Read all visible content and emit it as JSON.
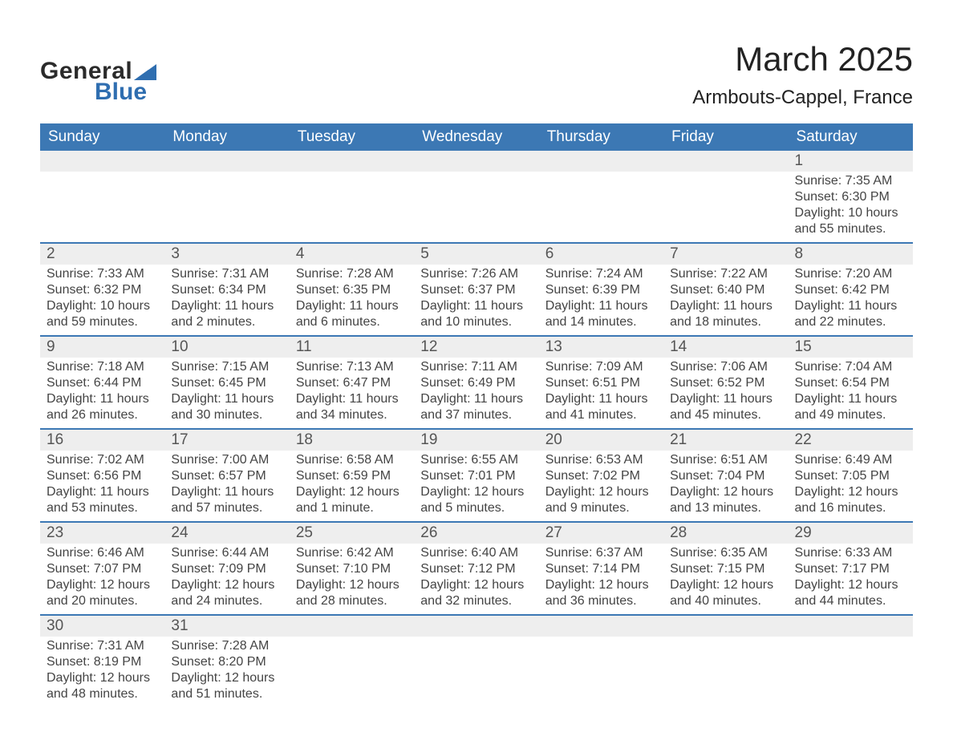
{
  "logo": {
    "text1": "General",
    "text2": "Blue",
    "text_color1": "#2b2b2b",
    "text_color2": "#2f6eb0",
    "shape_color": "#2f6eb0"
  },
  "header": {
    "month_title": "March 2025",
    "location": "Armbouts-Cappel, France",
    "title_fontsize": 42,
    "location_fontsize": 24,
    "text_color": "#222222"
  },
  "calendar": {
    "header_bg": "#3c78b4",
    "header_text_color": "#ffffff",
    "row_divider_color": "#3c78b4",
    "daynum_bg": "#eeeeee",
    "daynum_color": "#555555",
    "body_text_color": "#444444",
    "background_color": "#ffffff",
    "day_headers": [
      "Sunday",
      "Monday",
      "Tuesday",
      "Wednesday",
      "Thursday",
      "Friday",
      "Saturday"
    ],
    "weeks": [
      [
        null,
        null,
        null,
        null,
        null,
        null,
        {
          "n": "1",
          "sunrise": "Sunrise: 7:35 AM",
          "sunset": "Sunset: 6:30 PM",
          "daylight1": "Daylight: 10 hours",
          "daylight2": "and 55 minutes."
        }
      ],
      [
        {
          "n": "2",
          "sunrise": "Sunrise: 7:33 AM",
          "sunset": "Sunset: 6:32 PM",
          "daylight1": "Daylight: 10 hours",
          "daylight2": "and 59 minutes."
        },
        {
          "n": "3",
          "sunrise": "Sunrise: 7:31 AM",
          "sunset": "Sunset: 6:34 PM",
          "daylight1": "Daylight: 11 hours",
          "daylight2": "and 2 minutes."
        },
        {
          "n": "4",
          "sunrise": "Sunrise: 7:28 AM",
          "sunset": "Sunset: 6:35 PM",
          "daylight1": "Daylight: 11 hours",
          "daylight2": "and 6 minutes."
        },
        {
          "n": "5",
          "sunrise": "Sunrise: 7:26 AM",
          "sunset": "Sunset: 6:37 PM",
          "daylight1": "Daylight: 11 hours",
          "daylight2": "and 10 minutes."
        },
        {
          "n": "6",
          "sunrise": "Sunrise: 7:24 AM",
          "sunset": "Sunset: 6:39 PM",
          "daylight1": "Daylight: 11 hours",
          "daylight2": "and 14 minutes."
        },
        {
          "n": "7",
          "sunrise": "Sunrise: 7:22 AM",
          "sunset": "Sunset: 6:40 PM",
          "daylight1": "Daylight: 11 hours",
          "daylight2": "and 18 minutes."
        },
        {
          "n": "8",
          "sunrise": "Sunrise: 7:20 AM",
          "sunset": "Sunset: 6:42 PM",
          "daylight1": "Daylight: 11 hours",
          "daylight2": "and 22 minutes."
        }
      ],
      [
        {
          "n": "9",
          "sunrise": "Sunrise: 7:18 AM",
          "sunset": "Sunset: 6:44 PM",
          "daylight1": "Daylight: 11 hours",
          "daylight2": "and 26 minutes."
        },
        {
          "n": "10",
          "sunrise": "Sunrise: 7:15 AM",
          "sunset": "Sunset: 6:45 PM",
          "daylight1": "Daylight: 11 hours",
          "daylight2": "and 30 minutes."
        },
        {
          "n": "11",
          "sunrise": "Sunrise: 7:13 AM",
          "sunset": "Sunset: 6:47 PM",
          "daylight1": "Daylight: 11 hours",
          "daylight2": "and 34 minutes."
        },
        {
          "n": "12",
          "sunrise": "Sunrise: 7:11 AM",
          "sunset": "Sunset: 6:49 PM",
          "daylight1": "Daylight: 11 hours",
          "daylight2": "and 37 minutes."
        },
        {
          "n": "13",
          "sunrise": "Sunrise: 7:09 AM",
          "sunset": "Sunset: 6:51 PM",
          "daylight1": "Daylight: 11 hours",
          "daylight2": "and 41 minutes."
        },
        {
          "n": "14",
          "sunrise": "Sunrise: 7:06 AM",
          "sunset": "Sunset: 6:52 PM",
          "daylight1": "Daylight: 11 hours",
          "daylight2": "and 45 minutes."
        },
        {
          "n": "15",
          "sunrise": "Sunrise: 7:04 AM",
          "sunset": "Sunset: 6:54 PM",
          "daylight1": "Daylight: 11 hours",
          "daylight2": "and 49 minutes."
        }
      ],
      [
        {
          "n": "16",
          "sunrise": "Sunrise: 7:02 AM",
          "sunset": "Sunset: 6:56 PM",
          "daylight1": "Daylight: 11 hours",
          "daylight2": "and 53 minutes."
        },
        {
          "n": "17",
          "sunrise": "Sunrise: 7:00 AM",
          "sunset": "Sunset: 6:57 PM",
          "daylight1": "Daylight: 11 hours",
          "daylight2": "and 57 minutes."
        },
        {
          "n": "18",
          "sunrise": "Sunrise: 6:58 AM",
          "sunset": "Sunset: 6:59 PM",
          "daylight1": "Daylight: 12 hours",
          "daylight2": "and 1 minute."
        },
        {
          "n": "19",
          "sunrise": "Sunrise: 6:55 AM",
          "sunset": "Sunset: 7:01 PM",
          "daylight1": "Daylight: 12 hours",
          "daylight2": "and 5 minutes."
        },
        {
          "n": "20",
          "sunrise": "Sunrise: 6:53 AM",
          "sunset": "Sunset: 7:02 PM",
          "daylight1": "Daylight: 12 hours",
          "daylight2": "and 9 minutes."
        },
        {
          "n": "21",
          "sunrise": "Sunrise: 6:51 AM",
          "sunset": "Sunset: 7:04 PM",
          "daylight1": "Daylight: 12 hours",
          "daylight2": "and 13 minutes."
        },
        {
          "n": "22",
          "sunrise": "Sunrise: 6:49 AM",
          "sunset": "Sunset: 7:05 PM",
          "daylight1": "Daylight: 12 hours",
          "daylight2": "and 16 minutes."
        }
      ],
      [
        {
          "n": "23",
          "sunrise": "Sunrise: 6:46 AM",
          "sunset": "Sunset: 7:07 PM",
          "daylight1": "Daylight: 12 hours",
          "daylight2": "and 20 minutes."
        },
        {
          "n": "24",
          "sunrise": "Sunrise: 6:44 AM",
          "sunset": "Sunset: 7:09 PM",
          "daylight1": "Daylight: 12 hours",
          "daylight2": "and 24 minutes."
        },
        {
          "n": "25",
          "sunrise": "Sunrise: 6:42 AM",
          "sunset": "Sunset: 7:10 PM",
          "daylight1": "Daylight: 12 hours",
          "daylight2": "and 28 minutes."
        },
        {
          "n": "26",
          "sunrise": "Sunrise: 6:40 AM",
          "sunset": "Sunset: 7:12 PM",
          "daylight1": "Daylight: 12 hours",
          "daylight2": "and 32 minutes."
        },
        {
          "n": "27",
          "sunrise": "Sunrise: 6:37 AM",
          "sunset": "Sunset: 7:14 PM",
          "daylight1": "Daylight: 12 hours",
          "daylight2": "and 36 minutes."
        },
        {
          "n": "28",
          "sunrise": "Sunrise: 6:35 AM",
          "sunset": "Sunset: 7:15 PM",
          "daylight1": "Daylight: 12 hours",
          "daylight2": "and 40 minutes."
        },
        {
          "n": "29",
          "sunrise": "Sunrise: 6:33 AM",
          "sunset": "Sunset: 7:17 PM",
          "daylight1": "Daylight: 12 hours",
          "daylight2": "and 44 minutes."
        }
      ],
      [
        {
          "n": "30",
          "sunrise": "Sunrise: 7:31 AM",
          "sunset": "Sunset: 8:19 PM",
          "daylight1": "Daylight: 12 hours",
          "daylight2": "and 48 minutes."
        },
        {
          "n": "31",
          "sunrise": "Sunrise: 7:28 AM",
          "sunset": "Sunset: 8:20 PM",
          "daylight1": "Daylight: 12 hours",
          "daylight2": "and 51 minutes."
        },
        null,
        null,
        null,
        null,
        null
      ]
    ]
  }
}
